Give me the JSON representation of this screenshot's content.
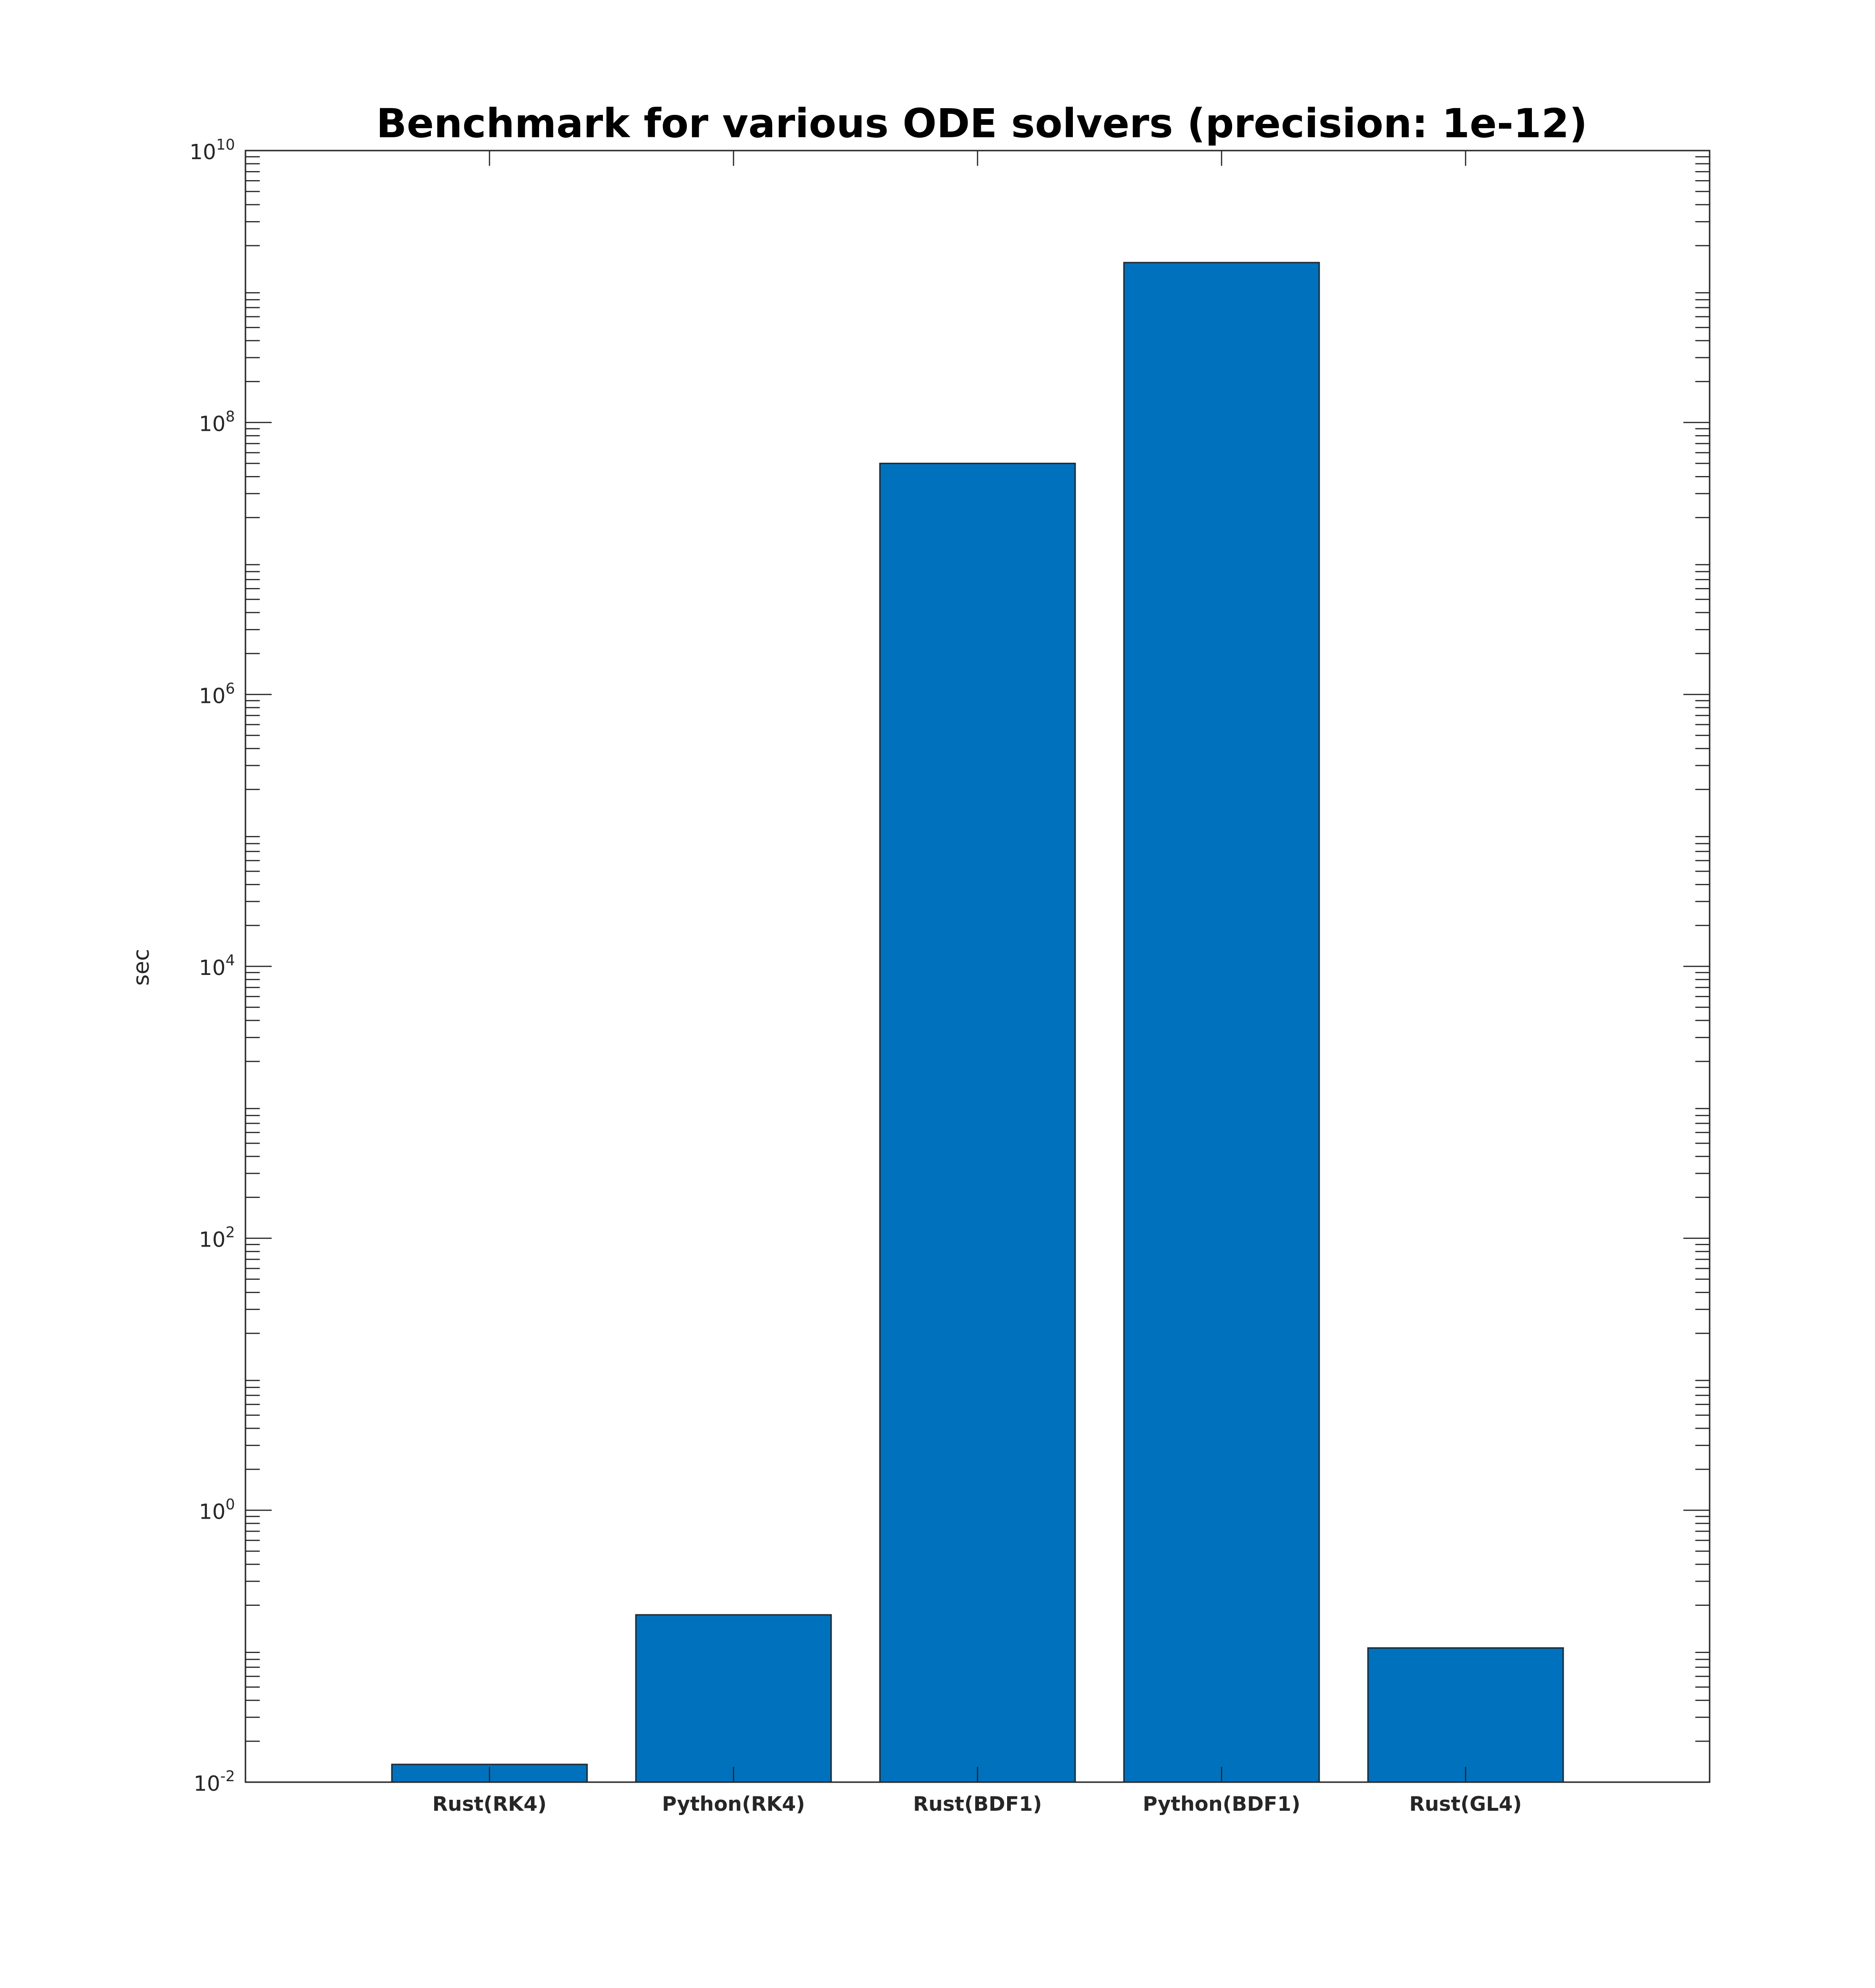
{
  "chart_data": {
    "type": "bar",
    "title": "Benchmark for various ODE solvers (precision: 1e-12)",
    "xlabel": "",
    "ylabel": "sec",
    "yscale": "log",
    "ylim": [
      0.01,
      10000000000
    ],
    "categories": [
      "Rust(RK4)",
      "Python(RK4)",
      "Rust(BDF1)",
      "Python(BDF1)",
      "Rust(GL4)"
    ],
    "values": [
      0.0135,
      0.17,
      50000000,
      1500000000,
      0.097
    ],
    "yticks": [
      {
        "base": "10",
        "exp": "-2",
        "value": 0.01
      },
      {
        "base": "10",
        "exp": "0",
        "value": 1
      },
      {
        "base": "10",
        "exp": "2",
        "value": 100
      },
      {
        "base": "10",
        "exp": "4",
        "value": 10000
      },
      {
        "base": "10",
        "exp": "6",
        "value": 1000000
      },
      {
        "base": "10",
        "exp": "8",
        "value": 100000000
      },
      {
        "base": "10",
        "exp": "10",
        "value": 10000000000
      }
    ],
    "bar_color": "#0072bd",
    "grid": false,
    "legend": "none"
  }
}
